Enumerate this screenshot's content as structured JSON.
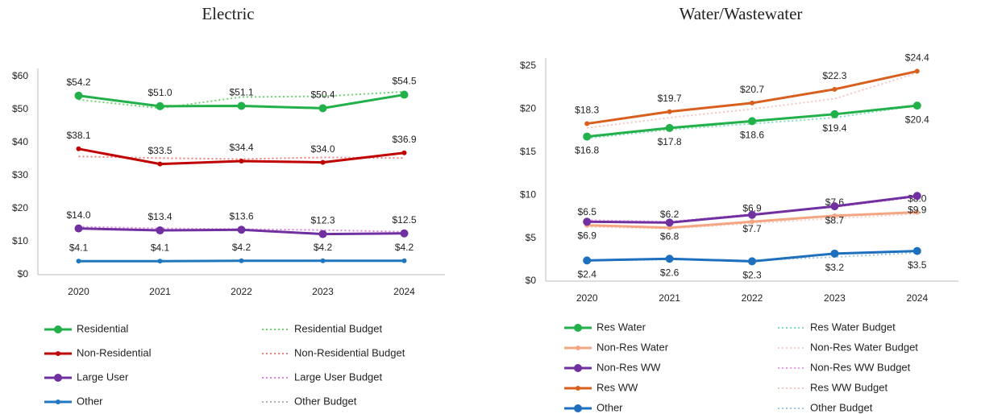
{
  "chart_data": [
    {
      "type": "line",
      "title": "Electric",
      "categories": [
        "2020",
        "2021",
        "2022",
        "2023",
        "2024"
      ],
      "ylim": [
        0,
        60
      ],
      "yticks": [
        {
          "value": 0,
          "label": "$0"
        },
        {
          "value": 10,
          "label": "$10"
        },
        {
          "value": 20,
          "label": "$20"
        },
        {
          "value": 30,
          "label": "$30"
        },
        {
          "value": 40,
          "label": "$40"
        },
        {
          "value": 50,
          "label": "$50"
        },
        {
          "value": 60,
          "label": "$60"
        }
      ],
      "grid": false,
      "series": [
        {
          "name": "Residential",
          "color": "#22b04a",
          "linestyle": "solid",
          "marker": "large",
          "label_position": "above",
          "values": [
            54.2,
            51.0,
            51.1,
            50.4,
            54.5
          ],
          "value_labels": [
            "$54.2",
            "$51.0",
            "$51.1",
            "$50.4",
            "$54.5"
          ]
        },
        {
          "name": "Non-Residential",
          "color": "#c00000",
          "linestyle": "solid",
          "marker": "small",
          "label_position": "above",
          "values": [
            38.1,
            33.5,
            34.4,
            34.0,
            36.9
          ],
          "value_labels": [
            "$38.1",
            "$33.5",
            "$34.4",
            "$34.0",
            "$36.9"
          ]
        },
        {
          "name": "Large User",
          "color": "#7030a0",
          "linestyle": "solid",
          "marker": "large",
          "label_position": "above",
          "values": [
            14.0,
            13.4,
            13.6,
            12.3,
            12.5
          ],
          "value_labels": [
            "$14.0",
            "$13.4",
            "$13.6",
            "$12.3",
            "$12.5"
          ]
        },
        {
          "name": "Other",
          "color": "#1f77c0",
          "linestyle": "solid",
          "marker": "small",
          "label_position": "above",
          "values": [
            4.1,
            4.1,
            4.2,
            4.2,
            4.2
          ],
          "value_labels": [
            "$4.1",
            "$4.1",
            "$4.2",
            "$4.2",
            "$4.2"
          ]
        },
        {
          "name": "Residential Budget",
          "color": "#6fd36f",
          "linestyle": "dotted",
          "marker": "none",
          "values": [
            53.0,
            50.4,
            53.8,
            54.0,
            55.4
          ]
        },
        {
          "name": "Non-Residential Budget",
          "color": "#f08080",
          "linestyle": "dotted",
          "marker": "none",
          "values": [
            35.8,
            35.3,
            35.0,
            35.5,
            35.3
          ]
        },
        {
          "name": "Large User Budget",
          "color": "#e080e0",
          "linestyle": "dotted",
          "marker": "none",
          "values": [
            14.5,
            14.0,
            13.8,
            13.5,
            13.0
          ]
        },
        {
          "name": "Other Budget",
          "color": "#b0b0b0",
          "linestyle": "dotted",
          "marker": "none",
          "values": [
            4.0,
            4.0,
            4.1,
            4.2,
            4.2
          ]
        }
      ]
    },
    {
      "type": "line",
      "title": "Water/Wastewater",
      "categories": [
        "2020",
        "2021",
        "2022",
        "2023",
        "2024"
      ],
      "ylim": [
        0,
        25
      ],
      "yticks": [
        {
          "value": 0,
          "label": "$0"
        },
        {
          "value": 5,
          "label": "$5"
        },
        {
          "value": 10,
          "label": "$10"
        },
        {
          "value": 15,
          "label": "$15"
        },
        {
          "value": 20,
          "label": "$20"
        },
        {
          "value": 25,
          "label": "$25"
        }
      ],
      "grid": false,
      "series": [
        {
          "name": "Res Water",
          "color": "#22b04a",
          "linestyle": "solid",
          "marker": "large",
          "label_position": "below",
          "values": [
            16.8,
            17.8,
            18.6,
            19.4,
            20.4
          ],
          "value_labels": [
            "$16.8",
            "$17.8",
            "$18.6",
            "$19.4",
            "$20.4"
          ]
        },
        {
          "name": "Non-Res Water",
          "color": "#f4a582",
          "linestyle": "solid",
          "marker": "small",
          "label_position": "above",
          "values": [
            6.5,
            6.2,
            6.9,
            7.6,
            8.0
          ],
          "value_labels": [
            "$6.5",
            "$6.2",
            "$6.9",
            "$7.6",
            "$8.0"
          ]
        },
        {
          "name": "Non-Res WW",
          "color": "#7030a0",
          "linestyle": "solid",
          "marker": "large",
          "label_position": "below",
          "values": [
            6.9,
            6.8,
            7.7,
            8.7,
            9.9
          ],
          "value_labels": [
            "$6.9",
            "$6.8",
            "$7.7",
            "$8.7",
            "$9.9"
          ]
        },
        {
          "name": "Res WW",
          "color": "#d95f1e",
          "linestyle": "solid",
          "marker": "small",
          "label_position": "above",
          "values": [
            18.3,
            19.7,
            20.7,
            22.3,
            24.4
          ],
          "value_labels": [
            "$18.3",
            "$19.7",
            "$20.7",
            "$22.3",
            "$24.4"
          ]
        },
        {
          "name": "Other",
          "color": "#1f6fbf",
          "linestyle": "solid",
          "marker": "large",
          "label_position": "below",
          "values": [
            2.4,
            2.6,
            2.3,
            3.2,
            3.5
          ],
          "value_labels": [
            "$2.4",
            "$2.6",
            "$2.3",
            "$3.2",
            "$3.5"
          ]
        },
        {
          "name": "Res Water Budget",
          "color": "#7fe0b8",
          "linestyle": "dotted",
          "marker": "none",
          "values": [
            16.6,
            17.6,
            18.3,
            19.0,
            20.4
          ]
        },
        {
          "name": "Non-Res Water Budget",
          "color": "#f8d0c8",
          "linestyle": "dotted",
          "marker": "none",
          "values": [
            6.3,
            6.1,
            6.7,
            7.3,
            7.8
          ]
        },
        {
          "name": "Non-Res WW Budget",
          "color": "#f09bf0",
          "linestyle": "dotted",
          "marker": "none",
          "values": [
            7.1,
            6.9,
            7.8,
            8.6,
            9.8
          ]
        },
        {
          "name": "Res WW Budget",
          "color": "#f5c6c6",
          "linestyle": "dotted",
          "marker": "none",
          "values": [
            17.8,
            19.0,
            20.0,
            21.2,
            24.2
          ]
        },
        {
          "name": "Other Budget",
          "color": "#9ecae1",
          "linestyle": "dotted",
          "marker": "none",
          "values": [
            2.4,
            2.5,
            2.4,
            2.8,
            3.3
          ]
        }
      ]
    }
  ]
}
